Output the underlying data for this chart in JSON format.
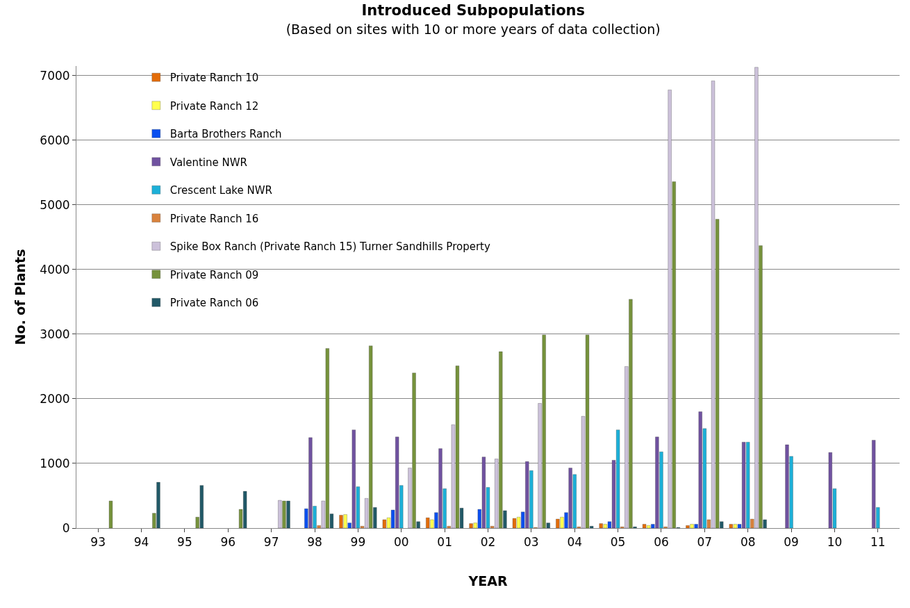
{
  "chart_data": {
    "type": "bar",
    "title": "Introduced Subpopulations",
    "subtitle": "(Based on sites with 10 or more years of data collection)",
    "xlabel": "YEAR",
    "ylabel": "No. of Plants",
    "categories": [
      "93",
      "94",
      "95",
      "96",
      "97",
      "98",
      "99",
      "00",
      "01",
      "02",
      "03",
      "04",
      "05",
      "06",
      "07",
      "08",
      "09",
      "10",
      "11"
    ],
    "series": [
      {
        "name": "Private Ranch 10",
        "color": "#e36c09",
        "values": [
          null,
          null,
          null,
          null,
          null,
          null,
          200,
          130,
          160,
          70,
          150,
          140,
          70,
          60,
          40,
          60,
          null,
          null,
          null
        ]
      },
      {
        "name": "Private Ranch 12",
        "color": "#ffff4d",
        "values": [
          null,
          null,
          null,
          null,
          null,
          null,
          210,
          160,
          130,
          80,
          170,
          170,
          60,
          40,
          60,
          60,
          null,
          null,
          null
        ]
      },
      {
        "name": "Barta Brothers Ranch",
        "color": "#0a4ff0",
        "values": [
          null,
          null,
          null,
          null,
          null,
          300,
          80,
          280,
          240,
          290,
          250,
          240,
          100,
          60,
          60,
          60,
          null,
          null,
          null
        ]
      },
      {
        "name": "Valentine NWR",
        "color": "#7052a0",
        "values": [
          null,
          null,
          null,
          null,
          null,
          1400,
          1520,
          1410,
          1230,
          1100,
          1030,
          930,
          1050,
          1410,
          1800,
          1330,
          1290,
          1170,
          1360
        ]
      },
      {
        "name": "Crescent Lake NWR",
        "color": "#1cb0d8",
        "values": [
          null,
          null,
          null,
          null,
          null,
          340,
          640,
          660,
          610,
          630,
          890,
          830,
          1520,
          1180,
          1540,
          1330,
          1110,
          610,
          320
        ]
      },
      {
        "name": "Private Ranch 16",
        "color": "#d9823c",
        "values": [
          null,
          null,
          null,
          null,
          null,
          40,
          30,
          null,
          30,
          30,
          10,
          20,
          20,
          20,
          130,
          140,
          null,
          null,
          null
        ]
      },
      {
        "name": "Spike Box Ranch (Private Ranch 15) Turner Sandhills Property",
        "color": "#ccc1da",
        "values": [
          null,
          null,
          null,
          null,
          430,
          420,
          460,
          930,
          1600,
          1070,
          1930,
          1730,
          2500,
          6780,
          6920,
          7130,
          null,
          null,
          null
        ]
      },
      {
        "name": "Private Ranch 09",
        "color": "#76923c",
        "values": [
          420,
          230,
          170,
          290,
          420,
          2780,
          2820,
          2400,
          2510,
          2730,
          2990,
          2990,
          3540,
          5360,
          4780,
          4370,
          null,
          null,
          null
        ]
      },
      {
        "name": "Private Ranch 06",
        "color": "#215967",
        "values": [
          null,
          710,
          660,
          570,
          420,
          220,
          320,
          100,
          310,
          270,
          80,
          30,
          20,
          10,
          100,
          130,
          null,
          null,
          null
        ]
      }
    ],
    "ylim": [
      0,
      7150
    ],
    "yticks": [
      0,
      1000,
      2000,
      3000,
      4000,
      5000,
      6000,
      7000
    ],
    "grid": "y",
    "legend": "top left"
  }
}
